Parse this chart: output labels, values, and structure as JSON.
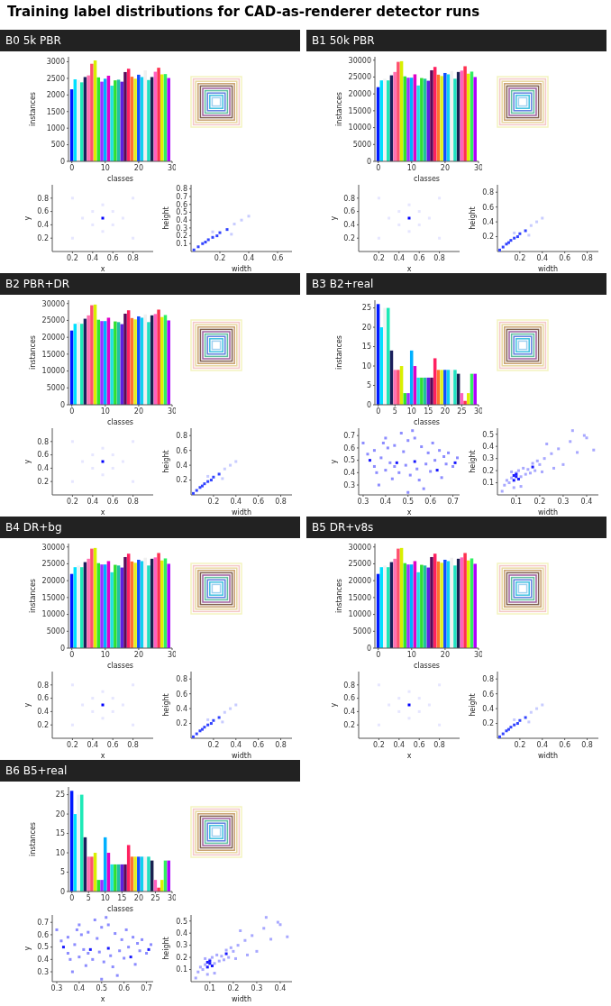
{
  "chart_data": [
    {
      "type": "bar",
      "title": "Training label distributions for CAD-as-renderer detector runs",
      "subtitle": "B0 5k PBR",
      "xlabel": "classes",
      "ylabel": "instances",
      "x": [
        0,
        1,
        2,
        3,
        4,
        5,
        6,
        7,
        8,
        9,
        10,
        11,
        12,
        13,
        14,
        15,
        16,
        17,
        18,
        19,
        20,
        21,
        22,
        23,
        24,
        25,
        26,
        27,
        28,
        29
      ],
      "values": [
        2170,
        2470,
        2450,
        2380,
        2540,
        2590,
        2940,
        3040,
        2530,
        2400,
        2490,
        2580,
        2280,
        2440,
        2460,
        2400,
        2690,
        2790,
        2550,
        2490,
        2610,
        2540,
        2740,
        2450,
        2540,
        2700,
        2820,
        2620,
        2630,
        2510
      ],
      "colors": [
        "#0018ff",
        "#00e0ff",
        "#eef3f3",
        "#1de9b6",
        "#1a1f5c",
        "#ff6fb0",
        "#ff4f6e",
        "#d8f000",
        "#2ee62e",
        "#9b30ff",
        "#00b0ff",
        "#e000c8",
        "#20e0e0",
        "#30e030",
        "#20c0a0",
        "#6020e0",
        "#5a0a5a",
        "#ff2060",
        "#ff7030",
        "#e0f020",
        "#1050ff",
        "#10d0f0",
        "#f0f0f0",
        "#20e0c0",
        "#1a2050",
        "#ff60c0",
        "#ff3050",
        "#e0f000",
        "#30f060",
        "#b000ff"
      ],
      "xlim": [
        -1,
        30
      ],
      "xticks": [
        0,
        10,
        20,
        30
      ],
      "ylim": [
        0,
        3150
      ],
      "yticks": [
        0,
        500,
        1000,
        1500,
        2000,
        2500,
        3000
      ]
    },
    {
      "type": "scatter",
      "xlabel": "x",
      "ylabel": "y",
      "marker": "square",
      "xlim": [
        0,
        1
      ],
      "ylim": [
        0,
        1
      ],
      "xticks": [
        0.2,
        0.4,
        0.6,
        0.8
      ],
      "yticks": [
        0.2,
        0.4,
        0.6,
        0.8
      ],
      "series": [
        {
          "color": "#e6e6ff",
          "x": [
            0.3,
            0.7,
            0.5,
            0.5,
            0.4,
            0.6,
            0.4,
            0.6,
            0.2,
            0.8,
            0.2,
            0.8
          ],
          "values": [
            0.5,
            0.5,
            0.3,
            0.7,
            0.4,
            0.6,
            0.6,
            0.4,
            0.2,
            0.8,
            0.8,
            0.2
          ]
        },
        {
          "color": "#0000ff",
          "x": [
            0.5
          ],
          "values": [
            0.5
          ]
        }
      ]
    },
    {
      "type": "scatter",
      "xlabel": "width",
      "ylabel": "height",
      "marker": "square",
      "xlim": [
        0,
        0.7
      ],
      "ylim": [
        0,
        0.85
      ],
      "xticks": [
        0.2,
        0.4,
        0.6
      ],
      "yticks": [
        0.1,
        0.2,
        0.3,
        0.4,
        0.5,
        0.6,
        0.7,
        0.8
      ],
      "series": [
        {
          "color": "#c8ccff",
          "x": [
            0.3,
            0.35,
            0.4,
            0.28,
            0.15
          ],
          "values": [
            0.35,
            0.4,
            0.45,
            0.22,
            0.25
          ]
        },
        {
          "color": "#3344ff",
          "x": [
            0.02,
            0.05,
            0.08,
            0.1,
            0.12,
            0.15,
            0.18,
            0.2,
            0.25
          ],
          "values": [
            0.02,
            0.06,
            0.1,
            0.12,
            0.15,
            0.18,
            0.2,
            0.24,
            0.28
          ]
        }
      ]
    },
    {
      "type": "bar",
      "subtitle": "B1 50k PBR",
      "xlabel": "classes",
      "ylabel": "instances",
      "x": [
        0,
        1,
        2,
        3,
        4,
        5,
        6,
        7,
        8,
        9,
        10,
        11,
        12,
        13,
        14,
        15,
        16,
        17,
        18,
        19,
        20,
        21,
        22,
        23,
        24,
        25,
        26,
        27,
        28,
        29
      ],
      "values": [
        22000,
        24000,
        24500,
        24000,
        25500,
        26500,
        29500,
        29700,
        25200,
        24800,
        24800,
        25800,
        22500,
        24700,
        24500,
        23900,
        27000,
        28000,
        25700,
        25300,
        26200,
        25800,
        26800,
        24500,
        26500,
        26900,
        28200,
        26000,
        26600,
        25000
      ],
      "colors": [
        "#0018ff",
        "#00e0ff",
        "#eef3f3",
        "#1de9b6",
        "#1a1f5c",
        "#ff6fb0",
        "#ff4f6e",
        "#d8f000",
        "#2ee62e",
        "#9b30ff",
        "#00b0ff",
        "#e000c8",
        "#20e0e0",
        "#30e030",
        "#20c0a0",
        "#6020e0",
        "#5a0a5a",
        "#ff2060",
        "#ff7030",
        "#e0f020",
        "#1050ff",
        "#10d0f0",
        "#f0f0f0",
        "#20e0c0",
        "#1a2050",
        "#ff60c0",
        "#ff3050",
        "#e0f000",
        "#30f060",
        "#b000ff"
      ],
      "xlim": [
        -1,
        30
      ],
      "xticks": [
        0,
        10,
        20,
        30
      ],
      "ylim": [
        0,
        31000
      ],
      "yticks": [
        0,
        5000,
        10000,
        15000,
        20000,
        25000,
        30000
      ]
    },
    {
      "type": "scatter",
      "xlabel": "x",
      "ylabel": "y",
      "marker": "square",
      "xlim": [
        0,
        1
      ],
      "ylim": [
        0,
        1
      ],
      "xticks": [
        0.2,
        0.4,
        0.6,
        0.8
      ],
      "yticks": [
        0.2,
        0.4,
        0.6,
        0.8
      ],
      "series": [
        {
          "color": "#e6e6ff",
          "x": [
            0.3,
            0.7,
            0.5,
            0.5,
            0.4,
            0.6,
            0.4,
            0.6,
            0.2,
            0.8,
            0.2,
            0.8
          ],
          "values": [
            0.5,
            0.5,
            0.3,
            0.7,
            0.4,
            0.6,
            0.6,
            0.4,
            0.2,
            0.8,
            0.8,
            0.2
          ]
        },
        {
          "color": "#0000ff",
          "x": [
            0.5
          ],
          "values": [
            0.5
          ]
        }
      ]
    },
    {
      "type": "scatter",
      "xlabel": "width",
      "ylabel": "height",
      "marker": "square",
      "xlim": [
        0,
        0.9
      ],
      "ylim": [
        0,
        0.9
      ],
      "xticks": [
        0.2,
        0.4,
        0.6,
        0.8
      ],
      "yticks": [
        0.2,
        0.4,
        0.6,
        0.8
      ],
      "series": [
        {
          "color": "#c8ccff",
          "x": [
            0.3,
            0.35,
            0.4,
            0.28,
            0.15
          ],
          "values": [
            0.35,
            0.4,
            0.45,
            0.22,
            0.25
          ]
        },
        {
          "color": "#3344ff",
          "x": [
            0.02,
            0.05,
            0.08,
            0.1,
            0.12,
            0.15,
            0.18,
            0.2,
            0.25
          ],
          "values": [
            0.02,
            0.06,
            0.1,
            0.12,
            0.15,
            0.18,
            0.2,
            0.24,
            0.28
          ]
        }
      ]
    },
    {
      "type": "bar",
      "subtitle": "B2 PBR+DR",
      "xlabel": "classes",
      "ylabel": "instances",
      "x": [
        0,
        1,
        2,
        3,
        4,
        5,
        6,
        7,
        8,
        9,
        10,
        11,
        12,
        13,
        14,
        15,
        16,
        17,
        18,
        19,
        20,
        21,
        22,
        23,
        24,
        25,
        26,
        27,
        28,
        29
      ],
      "values": [
        22000,
        24000,
        24500,
        24000,
        25500,
        26500,
        29500,
        29700,
        25200,
        24800,
        24800,
        25800,
        22500,
        24700,
        24500,
        23900,
        27000,
        28000,
        25700,
        25300,
        26200,
        25800,
        26800,
        24500,
        26500,
        26900,
        28200,
        26000,
        26600,
        25000
      ],
      "colors": [
        "#0018ff",
        "#00e0ff",
        "#eef3f3",
        "#1de9b6",
        "#1a1f5c",
        "#ff6fb0",
        "#ff4f6e",
        "#d8f000",
        "#2ee62e",
        "#9b30ff",
        "#00b0ff",
        "#e000c8",
        "#20e0e0",
        "#30e030",
        "#20c0a0",
        "#6020e0",
        "#5a0a5a",
        "#ff2060",
        "#ff7030",
        "#e0f020",
        "#1050ff",
        "#10d0f0",
        "#f0f0f0",
        "#20e0c0",
        "#1a2050",
        "#ff60c0",
        "#ff3050",
        "#e0f000",
        "#30f060",
        "#b000ff"
      ],
      "xlim": [
        -1,
        30
      ],
      "xticks": [
        0,
        10,
        20,
        30
      ],
      "ylim": [
        0,
        31000
      ],
      "yticks": [
        0,
        5000,
        10000,
        15000,
        20000,
        25000,
        30000
      ]
    },
    {
      "type": "scatter",
      "xlabel": "x",
      "ylabel": "y",
      "marker": "square",
      "xlim": [
        0,
        1
      ],
      "ylim": [
        0,
        1
      ],
      "xticks": [
        0.2,
        0.4,
        0.6,
        0.8
      ],
      "yticks": [
        0.2,
        0.4,
        0.6,
        0.8
      ],
      "series": [
        {
          "color": "#e6e6ff",
          "x": [
            0.3,
            0.7,
            0.5,
            0.5,
            0.4,
            0.6,
            0.4,
            0.6,
            0.2,
            0.8,
            0.2,
            0.8
          ],
          "values": [
            0.5,
            0.5,
            0.3,
            0.7,
            0.4,
            0.6,
            0.6,
            0.4,
            0.2,
            0.8,
            0.8,
            0.2
          ]
        },
        {
          "color": "#0000ff",
          "x": [
            0.5
          ],
          "values": [
            0.5
          ]
        }
      ]
    },
    {
      "type": "scatter",
      "xlabel": "width",
      "ylabel": "height",
      "marker": "square",
      "xlim": [
        0,
        0.9
      ],
      "ylim": [
        0,
        0.9
      ],
      "xticks": [
        0.2,
        0.4,
        0.6,
        0.8
      ],
      "yticks": [
        0.2,
        0.4,
        0.6,
        0.8
      ],
      "series": [
        {
          "color": "#c8ccff",
          "x": [
            0.3,
            0.35,
            0.4,
            0.28,
            0.15
          ],
          "values": [
            0.35,
            0.4,
            0.45,
            0.22,
            0.25
          ]
        },
        {
          "color": "#3344ff",
          "x": [
            0.02,
            0.05,
            0.08,
            0.1,
            0.12,
            0.15,
            0.18,
            0.2,
            0.25
          ],
          "values": [
            0.02,
            0.06,
            0.1,
            0.12,
            0.15,
            0.18,
            0.2,
            0.24,
            0.28
          ]
        }
      ]
    },
    {
      "type": "bar",
      "subtitle": "B3 B2+real",
      "xlabel": "classes",
      "ylabel": "instances",
      "x": [
        0,
        1,
        2,
        3,
        4,
        5,
        6,
        7,
        8,
        9,
        10,
        11,
        12,
        13,
        14,
        15,
        16,
        17,
        18,
        19,
        20,
        21,
        22,
        23,
        24,
        25,
        26,
        27,
        28,
        29
      ],
      "values": [
        26,
        20,
        25,
        25,
        14,
        9,
        9,
        10,
        3,
        3,
        14,
        10,
        7,
        7,
        7,
        7,
        7,
        12,
        9,
        9,
        9,
        9,
        9,
        9,
        8,
        3,
        1,
        3,
        8,
        8
      ],
      "colors": [
        "#0018ff",
        "#00e0ff",
        "#eef3f3",
        "#1de9b6",
        "#1a1f5c",
        "#ff6fb0",
        "#ff4f6e",
        "#d8f000",
        "#2ee62e",
        "#9b30ff",
        "#00b0ff",
        "#e000c8",
        "#20e0e0",
        "#30e030",
        "#20c0a0",
        "#6020e0",
        "#5a0a5a",
        "#ff2060",
        "#ff7030",
        "#e0f020",
        "#1050ff",
        "#10d0f0",
        "#f0f0f0",
        "#20e0c0",
        "#1a2050",
        "#ff60c0",
        "#ff3050",
        "#e0f000",
        "#30f060",
        "#b000ff"
      ],
      "xlim": [
        -1,
        30
      ],
      "xticks": [
        0,
        5,
        10,
        15,
        20,
        25,
        30
      ],
      "ylim": [
        0,
        27
      ],
      "yticks": [
        0,
        5,
        10,
        15,
        20,
        25
      ]
    },
    {
      "type": "scatter",
      "xlabel": "x",
      "ylabel": "y",
      "marker": "square",
      "xlim": [
        0.28,
        0.73
      ],
      "ylim": [
        0.22,
        0.76
      ],
      "xticks": [
        0.3,
        0.4,
        0.5,
        0.6,
        0.7
      ],
      "yticks": [
        0.3,
        0.4,
        0.5,
        0.6,
        0.7
      ],
      "series": [
        {
          "color": "#8c8cff",
          "x": [
            0.3,
            0.32,
            0.35,
            0.35,
            0.37,
            0.38,
            0.4,
            0.4,
            0.41,
            0.42,
            0.43,
            0.44,
            0.46,
            0.47,
            0.48,
            0.49,
            0.5,
            0.5,
            0.51,
            0.52,
            0.54,
            0.55,
            0.56,
            0.57,
            0.58,
            0.59,
            0.6,
            0.61,
            0.62,
            0.64,
            0.65,
            0.66,
            0.67,
            0.68,
            0.7,
            0.72,
            0.36,
            0.39,
            0.44,
            0.53
          ],
          "values": [
            0.64,
            0.55,
            0.45,
            0.58,
            0.3,
            0.52,
            0.68,
            0.42,
            0.6,
            0.48,
            0.35,
            0.62,
            0.4,
            0.72,
            0.57,
            0.46,
            0.24,
            0.66,
            0.38,
            0.74,
            0.43,
            0.34,
            0.61,
            0.27,
            0.47,
            0.56,
            0.41,
            0.64,
            0.5,
            0.58,
            0.36,
            0.53,
            0.47,
            0.56,
            0.45,
            0.52,
            0.4,
            0.64,
            0.45,
            0.68
          ]
        },
        {
          "color": "#1a1aff",
          "x": [
            0.33,
            0.45,
            0.53,
            0.71,
            0.63
          ],
          "values": [
            0.5,
            0.48,
            0.49,
            0.48,
            0.42
          ]
        }
      ]
    },
    {
      "type": "scatter",
      "xlabel": "width",
      "ylabel": "height",
      "marker": "square",
      "xlim": [
        0.02,
        0.45
      ],
      "ylim": [
        0,
        0.55
      ],
      "xticks": [
        0.1,
        0.2,
        0.3,
        0.4
      ],
      "yticks": [
        0.1,
        0.2,
        0.3,
        0.4,
        0.5
      ],
      "series": [
        {
          "color": "#a8a8ff",
          "x": [
            0.05,
            0.06,
            0.07,
            0.08,
            0.08,
            0.09,
            0.1,
            0.11,
            0.12,
            0.13,
            0.14,
            0.15,
            0.16,
            0.17,
            0.18,
            0.19,
            0.2,
            0.21,
            0.22,
            0.23,
            0.25,
            0.26,
            0.28,
            0.3,
            0.33,
            0.34,
            0.36,
            0.39,
            0.4,
            0.43,
            0.12,
            0.04
          ],
          "values": [
            0.08,
            0.12,
            0.1,
            0.14,
            0.19,
            0.06,
            0.18,
            0.2,
            0.15,
            0.22,
            0.17,
            0.21,
            0.18,
            0.26,
            0.2,
            0.28,
            0.25,
            0.19,
            0.3,
            0.42,
            0.34,
            0.22,
            0.38,
            0.25,
            0.44,
            0.53,
            0.35,
            0.49,
            0.47,
            0.37,
            0.07,
            0.03
          ]
        },
        {
          "color": "#1a1aff",
          "x": [
            0.09,
            0.09,
            0.1,
            0.1,
            0.17,
            0.11
          ],
          "values": [
            0.12,
            0.16,
            0.15,
            0.17,
            0.23,
            0.13
          ]
        }
      ]
    },
    {
      "type": "bar",
      "subtitle": "B4 DR+bg",
      "xlabel": "classes",
      "ylabel": "instances",
      "x": [
        0,
        1,
        2,
        3,
        4,
        5,
        6,
        7,
        8,
        9,
        10,
        11,
        12,
        13,
        14,
        15,
        16,
        17,
        18,
        19,
        20,
        21,
        22,
        23,
        24,
        25,
        26,
        27,
        28,
        29
      ],
      "values": [
        22000,
        24000,
        24500,
        24000,
        25500,
        26500,
        29500,
        29700,
        25200,
        24800,
        24800,
        25800,
        22500,
        24700,
        24500,
        23900,
        27000,
        28000,
        25700,
        25300,
        26200,
        25800,
        26800,
        24500,
        26500,
        26900,
        28200,
        26000,
        26600,
        25000
      ],
      "colors": [
        "#0018ff",
        "#00e0ff",
        "#eef3f3",
        "#1de9b6",
        "#1a1f5c",
        "#ff6fb0",
        "#ff4f6e",
        "#d8f000",
        "#2ee62e",
        "#9b30ff",
        "#00b0ff",
        "#e000c8",
        "#20e0e0",
        "#30e030",
        "#20c0a0",
        "#6020e0",
        "#5a0a5a",
        "#ff2060",
        "#ff7030",
        "#e0f020",
        "#1050ff",
        "#10d0f0",
        "#f0f0f0",
        "#20e0c0",
        "#1a2050",
        "#ff60c0",
        "#ff3050",
        "#e0f000",
        "#30f060",
        "#b000ff"
      ],
      "xlim": [
        -1,
        30
      ],
      "xticks": [
        0,
        10,
        20,
        30
      ],
      "ylim": [
        0,
        31000
      ],
      "yticks": [
        0,
        5000,
        10000,
        15000,
        20000,
        25000,
        30000
      ]
    },
    {
      "type": "scatter",
      "xlabel": "x",
      "ylabel": "y",
      "marker": "square",
      "xlim": [
        0,
        1
      ],
      "ylim": [
        0,
        1
      ],
      "xticks": [
        0.2,
        0.4,
        0.6,
        0.8
      ],
      "yticks": [
        0.2,
        0.4,
        0.6,
        0.8
      ],
      "series": [
        {
          "color": "#e6e6ff",
          "x": [
            0.3,
            0.7,
            0.5,
            0.5,
            0.4,
            0.6,
            0.4,
            0.6,
            0.2,
            0.8,
            0.2,
            0.8
          ],
          "values": [
            0.5,
            0.5,
            0.3,
            0.7,
            0.4,
            0.6,
            0.6,
            0.4,
            0.2,
            0.8,
            0.8,
            0.2
          ]
        },
        {
          "color": "#0000ff",
          "x": [
            0.5
          ],
          "values": [
            0.5
          ]
        }
      ]
    },
    {
      "type": "scatter",
      "xlabel": "width",
      "ylabel": "height",
      "marker": "square",
      "xlim": [
        0,
        0.9
      ],
      "ylim": [
        0,
        0.9
      ],
      "xticks": [
        0.2,
        0.4,
        0.6,
        0.8
      ],
      "yticks": [
        0.2,
        0.4,
        0.6,
        0.8
      ],
      "series": [
        {
          "color": "#c8ccff",
          "x": [
            0.3,
            0.35,
            0.4,
            0.28,
            0.15
          ],
          "values": [
            0.35,
            0.4,
            0.45,
            0.22,
            0.25
          ]
        },
        {
          "color": "#3344ff",
          "x": [
            0.02,
            0.05,
            0.08,
            0.1,
            0.12,
            0.15,
            0.18,
            0.2,
            0.25
          ],
          "values": [
            0.02,
            0.06,
            0.1,
            0.12,
            0.15,
            0.18,
            0.2,
            0.24,
            0.28
          ]
        }
      ]
    },
    {
      "type": "bar",
      "subtitle": "B5 DR+v8s",
      "xlabel": "classes",
      "ylabel": "instances",
      "x": [
        0,
        1,
        2,
        3,
        4,
        5,
        6,
        7,
        8,
        9,
        10,
        11,
        12,
        13,
        14,
        15,
        16,
        17,
        18,
        19,
        20,
        21,
        22,
        23,
        24,
        25,
        26,
        27,
        28,
        29
      ],
      "values": [
        22000,
        24000,
        24500,
        24000,
        25500,
        26500,
        29500,
        29700,
        25200,
        24800,
        24800,
        25800,
        22500,
        24700,
        24500,
        23900,
        27000,
        28000,
        25700,
        25300,
        26200,
        25800,
        26800,
        24500,
        26500,
        26900,
        28200,
        26000,
        26600,
        25000
      ],
      "colors": [
        "#0018ff",
        "#00e0ff",
        "#eef3f3",
        "#1de9b6",
        "#1a1f5c",
        "#ff6fb0",
        "#ff4f6e",
        "#d8f000",
        "#2ee62e",
        "#9b30ff",
        "#00b0ff",
        "#e000c8",
        "#20e0e0",
        "#30e030",
        "#20c0a0",
        "#6020e0",
        "#5a0a5a",
        "#ff2060",
        "#ff7030",
        "#e0f020",
        "#1050ff",
        "#10d0f0",
        "#f0f0f0",
        "#20e0c0",
        "#1a2050",
        "#ff60c0",
        "#ff3050",
        "#e0f000",
        "#30f060",
        "#b000ff"
      ],
      "xlim": [
        -1,
        30
      ],
      "xticks": [
        0,
        10,
        20,
        30
      ],
      "ylim": [
        0,
        31000
      ],
      "yticks": [
        0,
        5000,
        10000,
        15000,
        20000,
        25000,
        30000
      ]
    },
    {
      "type": "scatter",
      "xlabel": "x",
      "ylabel": "y",
      "marker": "square",
      "xlim": [
        0,
        1
      ],
      "ylim": [
        0,
        1
      ],
      "xticks": [
        0.2,
        0.4,
        0.6,
        0.8
      ],
      "yticks": [
        0.2,
        0.4,
        0.6,
        0.8
      ],
      "series": [
        {
          "color": "#e6e6ff",
          "x": [
            0.3,
            0.7,
            0.5,
            0.5,
            0.4,
            0.6,
            0.4,
            0.6,
            0.2,
            0.8,
            0.2,
            0.8
          ],
          "values": [
            0.5,
            0.5,
            0.3,
            0.7,
            0.4,
            0.6,
            0.6,
            0.4,
            0.2,
            0.8,
            0.8,
            0.2
          ]
        },
        {
          "color": "#0000ff",
          "x": [
            0.5
          ],
          "values": [
            0.5
          ]
        }
      ]
    },
    {
      "type": "scatter",
      "xlabel": "width",
      "ylabel": "height",
      "marker": "square",
      "xlim": [
        0,
        0.9
      ],
      "ylim": [
        0,
        0.9
      ],
      "xticks": [
        0.2,
        0.4,
        0.6,
        0.8
      ],
      "yticks": [
        0.2,
        0.4,
        0.6,
        0.8
      ],
      "series": [
        {
          "color": "#c8ccff",
          "x": [
            0.3,
            0.35,
            0.4,
            0.28,
            0.15
          ],
          "values": [
            0.35,
            0.4,
            0.45,
            0.22,
            0.25
          ]
        },
        {
          "color": "#3344ff",
          "x": [
            0.02,
            0.05,
            0.08,
            0.1,
            0.12,
            0.15,
            0.18,
            0.2,
            0.25
          ],
          "values": [
            0.02,
            0.06,
            0.1,
            0.12,
            0.15,
            0.18,
            0.2,
            0.24,
            0.28
          ]
        }
      ]
    },
    {
      "type": "bar",
      "subtitle": "B6 B5+real",
      "xlabel": "classes",
      "ylabel": "instances",
      "x": [
        0,
        1,
        2,
        3,
        4,
        5,
        6,
        7,
        8,
        9,
        10,
        11,
        12,
        13,
        14,
        15,
        16,
        17,
        18,
        19,
        20,
        21,
        22,
        23,
        24,
        25,
        26,
        27,
        28,
        29
      ],
      "values": [
        26,
        20,
        25,
        25,
        14,
        9,
        9,
        10,
        3,
        3,
        14,
        10,
        7,
        7,
        7,
        7,
        7,
        12,
        9,
        9,
        9,
        9,
        9,
        9,
        8,
        3,
        1,
        3,
        8,
        8
      ],
      "colors": [
        "#0018ff",
        "#00e0ff",
        "#eef3f3",
        "#1de9b6",
        "#1a1f5c",
        "#ff6fb0",
        "#ff4f6e",
        "#d8f000",
        "#2ee62e",
        "#9b30ff",
        "#00b0ff",
        "#e000c8",
        "#20e0e0",
        "#30e030",
        "#20c0a0",
        "#6020e0",
        "#5a0a5a",
        "#ff2060",
        "#ff7030",
        "#e0f020",
        "#1050ff",
        "#10d0f0",
        "#f0f0f0",
        "#20e0c0",
        "#1a2050",
        "#ff60c0",
        "#ff3050",
        "#e0f000",
        "#30f060",
        "#b000ff"
      ],
      "xlim": [
        -1,
        30
      ],
      "xticks": [
        0,
        5,
        10,
        15,
        20,
        25,
        30
      ],
      "ylim": [
        0,
        27
      ],
      "yticks": [
        0,
        5,
        10,
        15,
        20,
        25
      ]
    },
    {
      "type": "scatter",
      "xlabel": "x",
      "ylabel": "y",
      "marker": "square",
      "xlim": [
        0.28,
        0.73
      ],
      "ylim": [
        0.22,
        0.76
      ],
      "xticks": [
        0.3,
        0.4,
        0.5,
        0.6,
        0.7
      ],
      "yticks": [
        0.3,
        0.4,
        0.5,
        0.6,
        0.7
      ],
      "series": [
        {
          "color": "#8c8cff",
          "x": [
            0.3,
            0.32,
            0.35,
            0.35,
            0.37,
            0.38,
            0.4,
            0.4,
            0.41,
            0.42,
            0.43,
            0.44,
            0.46,
            0.47,
            0.48,
            0.49,
            0.5,
            0.5,
            0.51,
            0.52,
            0.54,
            0.55,
            0.56,
            0.57,
            0.58,
            0.59,
            0.6,
            0.61,
            0.62,
            0.64,
            0.65,
            0.66,
            0.67,
            0.68,
            0.7,
            0.72,
            0.36,
            0.39,
            0.44,
            0.53
          ],
          "values": [
            0.64,
            0.55,
            0.45,
            0.58,
            0.3,
            0.52,
            0.68,
            0.42,
            0.6,
            0.48,
            0.35,
            0.62,
            0.4,
            0.72,
            0.57,
            0.46,
            0.24,
            0.66,
            0.38,
            0.74,
            0.43,
            0.34,
            0.61,
            0.27,
            0.47,
            0.56,
            0.41,
            0.64,
            0.5,
            0.58,
            0.36,
            0.53,
            0.47,
            0.56,
            0.45,
            0.52,
            0.4,
            0.64,
            0.45,
            0.68
          ]
        },
        {
          "color": "#1a1aff",
          "x": [
            0.33,
            0.45,
            0.53,
            0.71,
            0.63
          ],
          "values": [
            0.5,
            0.48,
            0.49,
            0.48,
            0.42
          ]
        }
      ]
    },
    {
      "type": "scatter",
      "xlabel": "width",
      "ylabel": "height",
      "marker": "square",
      "xlim": [
        0.02,
        0.45
      ],
      "ylim": [
        0,
        0.55
      ],
      "xticks": [
        0.1,
        0.2,
        0.3,
        0.4
      ],
      "yticks": [
        0.1,
        0.2,
        0.3,
        0.4,
        0.5
      ],
      "series": [
        {
          "color": "#a8a8ff",
          "x": [
            0.05,
            0.06,
            0.07,
            0.08,
            0.08,
            0.09,
            0.1,
            0.11,
            0.12,
            0.13,
            0.14,
            0.15,
            0.16,
            0.17,
            0.18,
            0.19,
            0.2,
            0.21,
            0.22,
            0.23,
            0.25,
            0.26,
            0.28,
            0.3,
            0.33,
            0.34,
            0.36,
            0.39,
            0.4,
            0.43,
            0.12,
            0.04
          ],
          "values": [
            0.08,
            0.12,
            0.1,
            0.14,
            0.19,
            0.06,
            0.18,
            0.2,
            0.15,
            0.22,
            0.17,
            0.21,
            0.18,
            0.26,
            0.2,
            0.28,
            0.25,
            0.19,
            0.3,
            0.42,
            0.34,
            0.22,
            0.38,
            0.25,
            0.44,
            0.53,
            0.35,
            0.49,
            0.47,
            0.37,
            0.07,
            0.03
          ]
        },
        {
          "color": "#1a1aff",
          "x": [
            0.09,
            0.09,
            0.1,
            0.1,
            0.17,
            0.11
          ],
          "values": [
            0.12,
            0.16,
            0.15,
            0.17,
            0.23,
            0.13
          ]
        }
      ]
    }
  ]
}
